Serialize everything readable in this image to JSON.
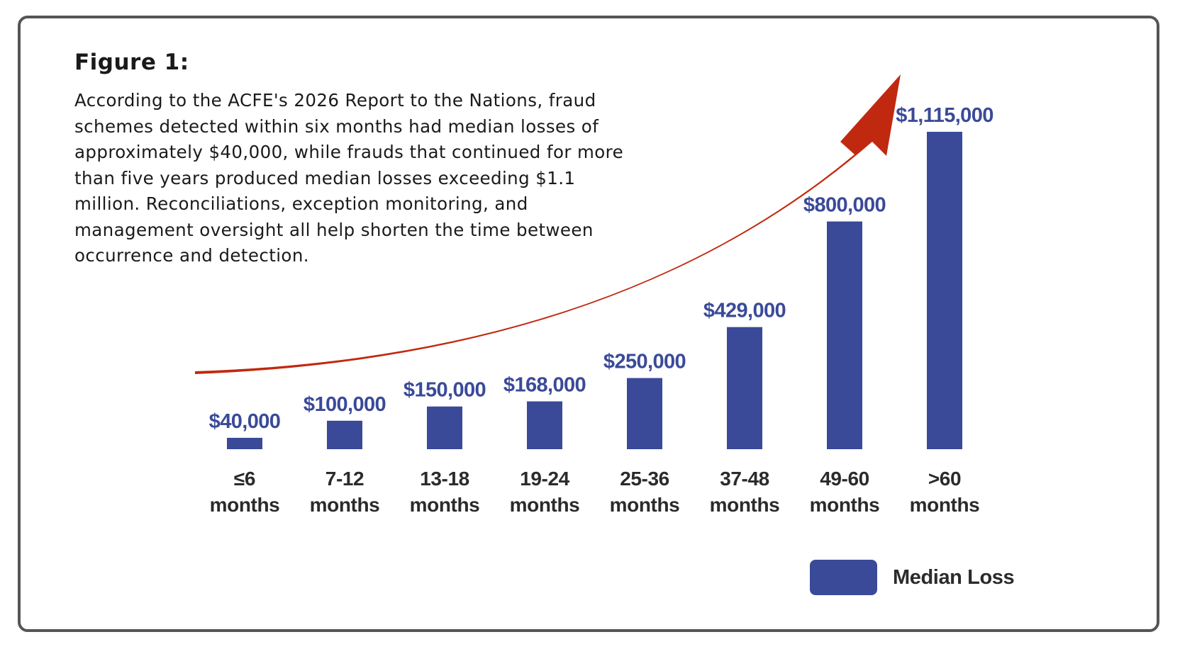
{
  "figure": {
    "title": "Figure 1:",
    "description": "According to the ACFE's 2026 Report to the Nations, fraud schemes detected within six months had median losses of approximately $40,000, while frauds that continued for more than five years produced median losses exceeding $1.1 million. Reconciliations, exception monitoring, and management oversight all help shorten the time between occurrence and detection."
  },
  "colors": {
    "bar": "#3a4a98",
    "arrow": "#c0290f",
    "frame": "#555555"
  },
  "chart_data": {
    "type": "bar",
    "categories": [
      [
        "≤6",
        "months"
      ],
      [
        "7-12",
        "months"
      ],
      [
        "13-18",
        "months"
      ],
      [
        "19-24",
        "months"
      ],
      [
        "25-36",
        "months"
      ],
      [
        "37-48",
        "months"
      ],
      [
        "49-60",
        "months"
      ],
      [
        ">60",
        "months"
      ]
    ],
    "series": [
      {
        "name": "Median Loss",
        "values": [
          40000,
          100000,
          150000,
          168000,
          250000,
          429000,
          800000,
          1115000
        ],
        "labels": [
          "$40,000",
          "$100,000",
          "$150,000",
          "$168,000",
          "$250,000",
          "$429,000",
          "$800,000",
          "$1,115,000"
        ]
      }
    ],
    "ylim": [
      0,
      1115000
    ],
    "grid": false,
    "legend_position": "bottom-right",
    "trend_arrow": true
  }
}
